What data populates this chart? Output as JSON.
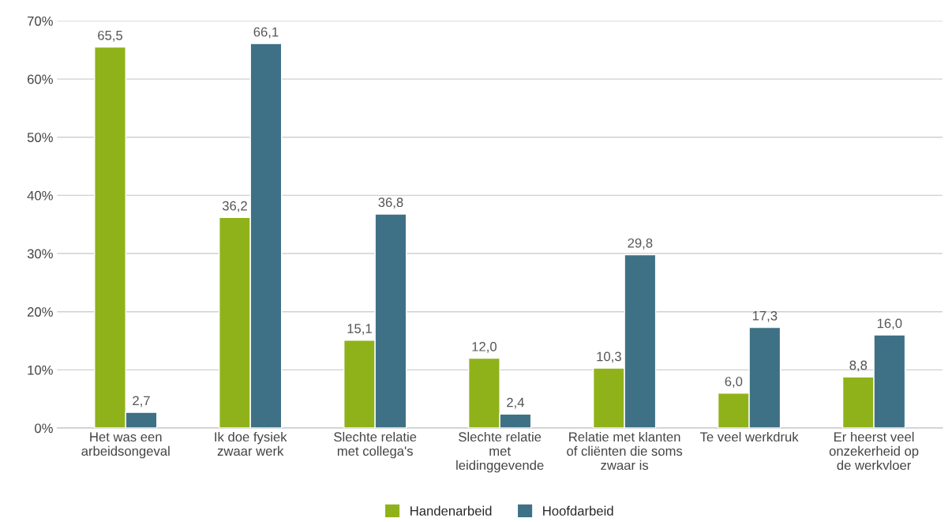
{
  "chart_data": {
    "type": "bar",
    "categories": [
      "Het was een\narbeidsongeval",
      "Ik doe fysiek\nzwaar werk",
      "Slechte relatie\nmet collega's",
      "Slechte relatie\nmet\nleidinggevende",
      "Relatie met klanten\nof cliënten die soms\nzwaar is",
      "Te veel werkdruk",
      "Er heerst veel\nonzekerheid op\nde werkvloer"
    ],
    "series": [
      {
        "name": "Handenarbeid",
        "color": "#8fb21a",
        "values": [
          65.5,
          36.2,
          15.1,
          12.0,
          10.3,
          6.0,
          8.8
        ],
        "value_labels": [
          "65,5",
          "36,2",
          "15,1",
          "12,0",
          "10,3",
          "6,0",
          "8,8"
        ]
      },
      {
        "name": "Hoofdarbeid",
        "color": "#3f7186",
        "values": [
          2.7,
          66.1,
          36.8,
          2.4,
          29.8,
          17.3,
          16.0
        ],
        "value_labels": [
          "2,7",
          "66,1",
          "36,8",
          "2,4",
          "29,8",
          "17,3",
          "16,0"
        ]
      }
    ],
    "ylim": [
      0,
      70
    ],
    "yticks": [
      {
        "value": 0,
        "label": "0%"
      },
      {
        "value": 10,
        "label": "10%"
      },
      {
        "value": 20,
        "label": "20%"
      },
      {
        "value": 30,
        "label": "30%"
      },
      {
        "value": 40,
        "label": "40%"
      },
      {
        "value": 50,
        "label": "50%"
      },
      {
        "value": 60,
        "label": "60%"
      },
      {
        "value": 70,
        "label": "70%"
      }
    ],
    "grid": "y",
    "legend": "bottom"
  }
}
